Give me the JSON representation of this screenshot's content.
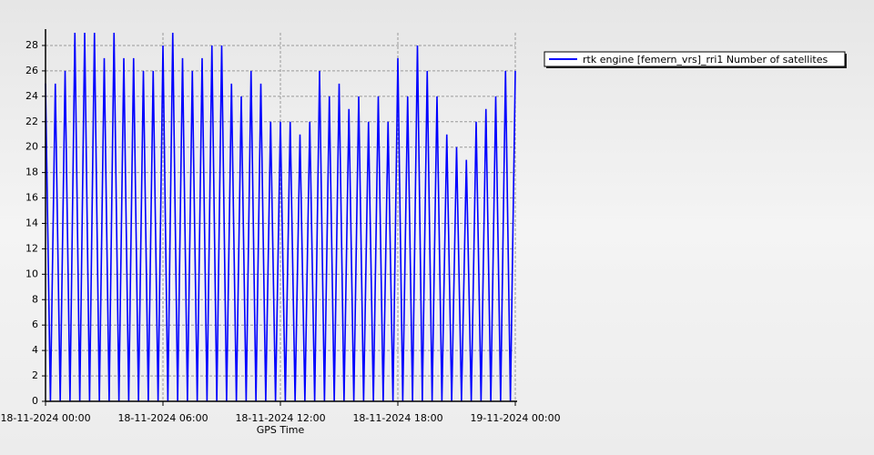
{
  "chart_data": {
    "type": "line",
    "xlabel": "GPS Time",
    "x": [
      "18-11-2024 00:00",
      "18-11-2024 00:15",
      "18-11-2024 00:30",
      "18-11-2024 00:45",
      "18-11-2024 01:00",
      "18-11-2024 01:15",
      "18-11-2024 01:30",
      "18-11-2024 01:45",
      "18-11-2024 02:00",
      "18-11-2024 02:15",
      "18-11-2024 02:30",
      "18-11-2024 02:45",
      "18-11-2024 03:00",
      "18-11-2024 03:15",
      "18-11-2024 03:30",
      "18-11-2024 03:45",
      "18-11-2024 04:00",
      "18-11-2024 04:15",
      "18-11-2024 04:30",
      "18-11-2024 04:45",
      "18-11-2024 05:00",
      "18-11-2024 05:15",
      "18-11-2024 05:30",
      "18-11-2024 05:45",
      "18-11-2024 06:00",
      "18-11-2024 06:15",
      "18-11-2024 06:30",
      "18-11-2024 06:45",
      "18-11-2024 07:00",
      "18-11-2024 07:15",
      "18-11-2024 07:30",
      "18-11-2024 07:45",
      "18-11-2024 08:00",
      "18-11-2024 08:15",
      "18-11-2024 08:30",
      "18-11-2024 08:45",
      "18-11-2024 09:00",
      "18-11-2024 09:15",
      "18-11-2024 09:30",
      "18-11-2024 09:45",
      "18-11-2024 10:00",
      "18-11-2024 10:15",
      "18-11-2024 10:30",
      "18-11-2024 10:45",
      "18-11-2024 11:00",
      "18-11-2024 11:15",
      "18-11-2024 11:30",
      "18-11-2024 11:45",
      "18-11-2024 12:00",
      "18-11-2024 12:15",
      "18-11-2024 12:30",
      "18-11-2024 12:45",
      "18-11-2024 13:00",
      "18-11-2024 13:15",
      "18-11-2024 13:30",
      "18-11-2024 13:45",
      "18-11-2024 14:00",
      "18-11-2024 14:15",
      "18-11-2024 14:30",
      "18-11-2024 14:45",
      "18-11-2024 15:00",
      "18-11-2024 15:15",
      "18-11-2024 15:30",
      "18-11-2024 15:45",
      "18-11-2024 16:00",
      "18-11-2024 16:15",
      "18-11-2024 16:30",
      "18-11-2024 16:45",
      "18-11-2024 17:00",
      "18-11-2024 17:15",
      "18-11-2024 17:30",
      "18-11-2024 17:45",
      "18-11-2024 18:00",
      "18-11-2024 18:15",
      "18-11-2024 18:30",
      "18-11-2024 18:45",
      "18-11-2024 19:00",
      "18-11-2024 19:15",
      "18-11-2024 19:30",
      "18-11-2024 19:45",
      "18-11-2024 20:00",
      "18-11-2024 20:15",
      "18-11-2024 20:30",
      "18-11-2024 20:45",
      "18-11-2024 21:00",
      "18-11-2024 21:15",
      "18-11-2024 21:30",
      "18-11-2024 21:45",
      "18-11-2024 22:00",
      "18-11-2024 22:15",
      "18-11-2024 22:30",
      "18-11-2024 22:45",
      "18-11-2024 23:00",
      "18-11-2024 23:15",
      "18-11-2024 23:30",
      "18-11-2024 23:45",
      "19-11-2024 00:00"
    ],
    "series": [
      {
        "name": "rtk engine [femern_vrs]_rri1 Number of satellites",
        "color": "#0000ff",
        "values": [
          25,
          0,
          25,
          0,
          26,
          0,
          29,
          0,
          29,
          0,
          29,
          0,
          27,
          0,
          29,
          0,
          27,
          0,
          27,
          0,
          26,
          0,
          26,
          0,
          28,
          0,
          29,
          0,
          27,
          0,
          26,
          0,
          27,
          0,
          28,
          0,
          28,
          0,
          25,
          0,
          24,
          0,
          26,
          0,
          25,
          0,
          22,
          0,
          22,
          0,
          22,
          0,
          21,
          0,
          22,
          0,
          26,
          0,
          24,
          0,
          25,
          0,
          23,
          0,
          24,
          0,
          22,
          0,
          24,
          0,
          22,
          0,
          27,
          0,
          24,
          0,
          28,
          0,
          26,
          0,
          24,
          0,
          21,
          0,
          20,
          0,
          19,
          0,
          22,
          0,
          23,
          0,
          24,
          0,
          26,
          0,
          26
        ]
      }
    ],
    "xlim": [
      "18-11-2024 00:00",
      "19-11-2024 00:00"
    ],
    "xticks": [
      "18-11-2024 00:00",
      "18-11-2024 06:00",
      "18-11-2024 12:00",
      "18-11-2024 18:00",
      "19-11-2024 00:00"
    ],
    "ylim": [
      0,
      29
    ],
    "yticks": [
      0,
      2,
      4,
      6,
      8,
      10,
      12,
      14,
      16,
      18,
      20,
      22,
      24,
      26,
      28
    ],
    "grid": true,
    "legend": "right"
  }
}
